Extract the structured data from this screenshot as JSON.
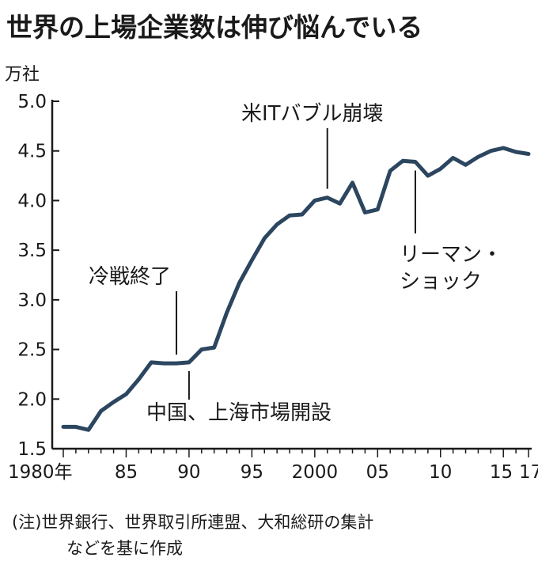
{
  "title": "世界の上場企業数は伸び悩んでいる",
  "note": {
    "line1": "(注)世界銀行、世界取引所連盟、大和総研の集計",
    "line2": "などを基に作成"
  },
  "colors": {
    "line": "#2c4660",
    "axis": "#1a1a1a",
    "text": "#1a1a1a",
    "background": "#ffffff"
  },
  "chart_data": {
    "type": "line",
    "title": "世界の上場企業数は伸び悩んでいる",
    "ylabel": "万社",
    "xlabel": "",
    "ylim": [
      1.5,
      5.0
    ],
    "xlim": [
      1980,
      2017
    ],
    "grid": false,
    "yticks": [
      5.0,
      4.5,
      4.0,
      3.5,
      3.0,
      2.5,
      2.0,
      1.5
    ],
    "ytick_labels": [
      "5.0",
      "4.5",
      "4.0",
      "3.5",
      "3.0",
      "2.5",
      "2.0",
      "1.5"
    ],
    "xticks": [
      1980,
      1985,
      1990,
      1995,
      2000,
      2005,
      2010,
      2015,
      2017
    ],
    "xtick_labels": [
      "1980年",
      "85",
      "90",
      "95",
      "2000",
      "05",
      "10",
      "15",
      "17"
    ],
    "x": [
      1980,
      1981,
      1982,
      1983,
      1984,
      1985,
      1986,
      1987,
      1988,
      1989,
      1990,
      1991,
      1992,
      1993,
      1994,
      1995,
      1996,
      1997,
      1998,
      1999,
      2000,
      2001,
      2002,
      2003,
      2004,
      2005,
      2006,
      2007,
      2008,
      2009,
      2010,
      2011,
      2012,
      2013,
      2014,
      2015,
      2016,
      2017
    ],
    "series": [
      {
        "values": [
          1.72,
          1.72,
          1.69,
          1.88,
          1.97,
          2.05,
          2.2,
          2.37,
          2.36,
          2.36,
          2.37,
          2.5,
          2.52,
          2.87,
          3.17,
          3.4,
          3.62,
          3.76,
          3.85,
          3.86,
          4.0,
          4.03,
          3.97,
          4.18,
          3.88,
          3.91,
          4.3,
          4.4,
          4.39,
          4.25,
          4.32,
          4.43,
          4.36,
          4.44,
          4.5,
          4.53,
          4.49,
          4.47
        ]
      }
    ],
    "annotations": [
      {
        "text": [
          "米ITバブル崩壊"
        ],
        "x": 2001,
        "side": "above"
      },
      {
        "text": [
          "冷戦終了"
        ],
        "x": 1989,
        "side": "above"
      },
      {
        "text": [
          "中国、上海市場開設"
        ],
        "x": 1990,
        "side": "below"
      },
      {
        "text": [
          "リーマン・",
          "ショック"
        ],
        "x": 2008,
        "side": "below"
      }
    ]
  }
}
